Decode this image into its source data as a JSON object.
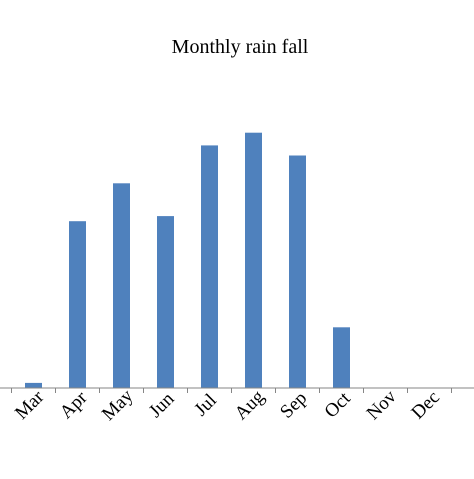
{
  "chart_data": {
    "type": "bar",
    "title": "Monthly rain fall",
    "xlabel": "",
    "ylabel": "",
    "categories": [
      "Mar",
      "Apr",
      "May",
      "Jun",
      "Jul",
      "Aug",
      "Sep",
      "Oct",
      "Nov",
      "Dec"
    ],
    "series": [
      {
        "values": [
          2,
          66,
          81,
          68,
          96,
          101,
          92,
          24,
          0,
          0
        ]
      }
    ],
    "ylim": [
      0,
      110
    ],
    "grid": false,
    "legend": "none",
    "colors": {
      "bar": "#4f81bd",
      "axis": "#868686"
    }
  }
}
